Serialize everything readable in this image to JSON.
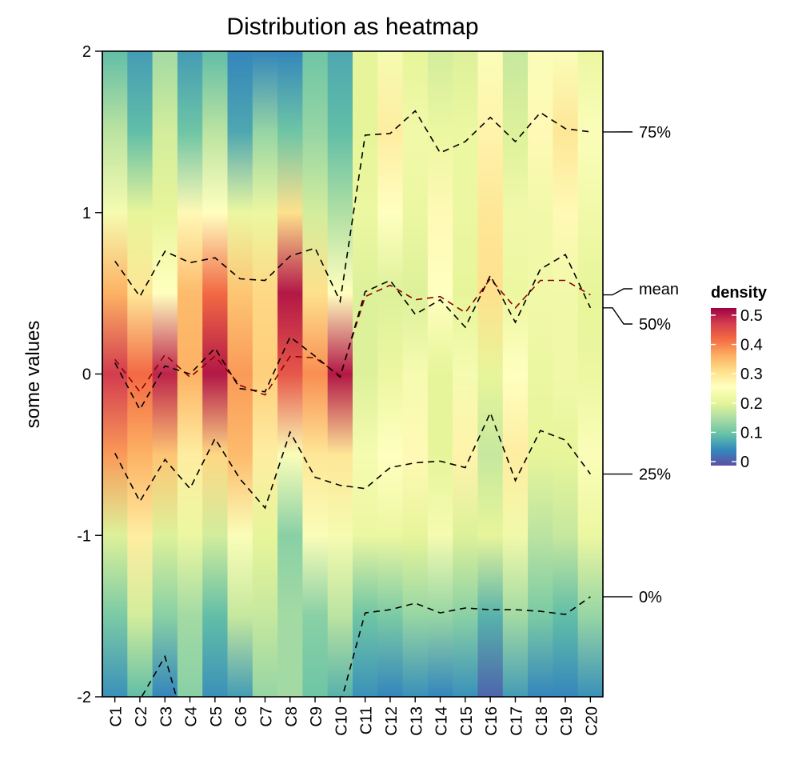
{
  "chart_data": {
    "type": "heatmap",
    "title": "Distribution as heatmap",
    "xlabel": "",
    "ylabel": "some values",
    "ylim": [
      -2,
      2
    ],
    "yticks": [
      2,
      1,
      0,
      -1,
      -2
    ],
    "ytick_labels": [
      "2",
      "1",
      "0",
      "-1",
      "-2"
    ],
    "categories": [
      "C1",
      "C2",
      "C3",
      "C4",
      "C5",
      "C6",
      "C7",
      "C8",
      "C9",
      "C10",
      "C11",
      "C12",
      "C13",
      "C14",
      "C15",
      "C16",
      "C17",
      "C18",
      "C19",
      "C20"
    ],
    "density_grid_y": [
      2,
      1.5,
      1,
      0.5,
      0,
      -0.5,
      -1,
      -1.5,
      -2
    ],
    "density": [
      [
        0.1,
        0.17,
        0.24,
        0.36,
        0.47,
        0.38,
        0.2,
        0.12,
        0.06
      ],
      [
        0.07,
        0.1,
        0.21,
        0.3,
        0.42,
        0.36,
        0.29,
        0.19,
        0.1
      ],
      [
        0.15,
        0.19,
        0.21,
        0.26,
        0.49,
        0.34,
        0.2,
        0.13,
        0.05
      ],
      [
        0.07,
        0.11,
        0.27,
        0.35,
        0.36,
        0.29,
        0.22,
        0.15,
        0.13
      ],
      [
        0.1,
        0.17,
        0.26,
        0.42,
        0.5,
        0.32,
        0.19,
        0.1,
        0.06
      ],
      [
        0.05,
        0.08,
        0.22,
        0.34,
        0.38,
        0.35,
        0.25,
        0.18,
        0.07
      ],
      [
        0.05,
        0.14,
        0.22,
        0.32,
        0.33,
        0.29,
        0.21,
        0.18,
        0.14
      ],
      [
        0.05,
        0.11,
        0.31,
        0.5,
        0.44,
        0.25,
        0.13,
        0.15,
        0.15
      ],
      [
        0.11,
        0.14,
        0.19,
        0.31,
        0.39,
        0.3,
        0.25,
        0.13,
        0.11
      ],
      [
        0.08,
        0.1,
        0.16,
        0.26,
        0.5,
        0.3,
        0.24,
        0.17,
        0.09
      ],
      [
        0.21,
        0.21,
        0.22,
        0.2,
        0.2,
        0.24,
        0.22,
        0.11,
        0.06
      ],
      [
        0.24,
        0.29,
        0.26,
        0.2,
        0.22,
        0.26,
        0.22,
        0.12,
        0.05
      ],
      [
        0.21,
        0.23,
        0.22,
        0.2,
        0.24,
        0.27,
        0.21,
        0.14,
        0.06
      ],
      [
        0.19,
        0.22,
        0.27,
        0.26,
        0.21,
        0.21,
        0.24,
        0.14,
        0.05
      ],
      [
        0.2,
        0.22,
        0.22,
        0.21,
        0.24,
        0.28,
        0.2,
        0.13,
        0.06
      ],
      [
        0.25,
        0.28,
        0.3,
        0.31,
        0.21,
        0.18,
        0.21,
        0.09,
        0.02
      ],
      [
        0.18,
        0.2,
        0.23,
        0.22,
        0.26,
        0.29,
        0.23,
        0.15,
        0.07
      ],
      [
        0.25,
        0.27,
        0.23,
        0.23,
        0.22,
        0.21,
        0.17,
        0.12,
        0.05
      ],
      [
        0.25,
        0.3,
        0.27,
        0.23,
        0.23,
        0.21,
        0.18,
        0.1,
        0.05
      ],
      [
        0.22,
        0.25,
        0.23,
        0.21,
        0.22,
        0.25,
        0.22,
        0.14,
        0.06
      ]
    ],
    "series": [
      {
        "name": "75%",
        "style": "dashed",
        "color": "#000000",
        "values": [
          0.7,
          0.48,
          0.76,
          0.69,
          0.72,
          0.59,
          0.58,
          0.73,
          0.78,
          0.45,
          1.48,
          1.49,
          1.63,
          1.37,
          1.44,
          1.59,
          1.44,
          1.62,
          1.52,
          1.5
        ]
      },
      {
        "name": "mean",
        "style": "dashed",
        "color": "#8b0000",
        "values": [
          0.09,
          -0.11,
          0.12,
          -0.02,
          0.11,
          -0.07,
          -0.13,
          0.11,
          0.1,
          -0.01,
          0.48,
          0.55,
          0.46,
          0.48,
          0.38,
          0.59,
          0.41,
          0.58,
          0.58,
          0.49
        ]
      },
      {
        "name": "50%",
        "style": "dashed",
        "color": "#000000",
        "values": [
          0.07,
          -0.22,
          0.05,
          0.0,
          0.16,
          -0.09,
          -0.11,
          0.23,
          0.11,
          -0.02,
          0.51,
          0.58,
          0.37,
          0.46,
          0.29,
          0.61,
          0.32,
          0.65,
          0.74,
          0.41
        ]
      },
      {
        "name": "25%",
        "style": "dashed",
        "color": "#000000",
        "values": [
          -0.49,
          -0.79,
          -0.53,
          -0.71,
          -0.4,
          -0.65,
          -0.83,
          -0.36,
          -0.64,
          -0.69,
          -0.71,
          -0.58,
          -0.55,
          -0.54,
          -0.58,
          -0.24,
          -0.66,
          -0.35,
          -0.41,
          -0.62
        ]
      },
      {
        "name": "0%",
        "style": "dashed",
        "color": "#000000",
        "values": [
          -2.3,
          -2.02,
          -1.75,
          -2.3,
          -2.3,
          -2.3,
          -2.3,
          -2.3,
          -2.3,
          -2.05,
          -1.48,
          -1.46,
          -1.42,
          -1.48,
          -1.45,
          -1.46,
          -1.46,
          -1.47,
          -1.49,
          -1.38
        ]
      }
    ],
    "annotations": [
      {
        "label": "75%",
        "y": 1.5
      },
      {
        "label": "mean",
        "y": 0.49
      },
      {
        "label": "50%",
        "y": 0.41
      },
      {
        "label": "25%",
        "y": -0.62
      },
      {
        "label": "0%",
        "y": -1.38
      }
    ],
    "legend": {
      "title": "density",
      "position": "right",
      "range": [
        0,
        0.52
      ],
      "ticks": [
        0.5,
        0.4,
        0.3,
        0.2,
        0.1,
        0
      ],
      "tick_labels": [
        "0.5",
        "0.4",
        "0.3",
        "0.2",
        "0.1",
        "0"
      ],
      "palette": [
        "#5E4FA2",
        "#3288BD",
        "#66C2A5",
        "#ABDDA4",
        "#E6F598",
        "#FFFFBF",
        "#FEE08B",
        "#FDAE61",
        "#F46D43",
        "#D53E4F",
        "#9E0142"
      ]
    }
  }
}
